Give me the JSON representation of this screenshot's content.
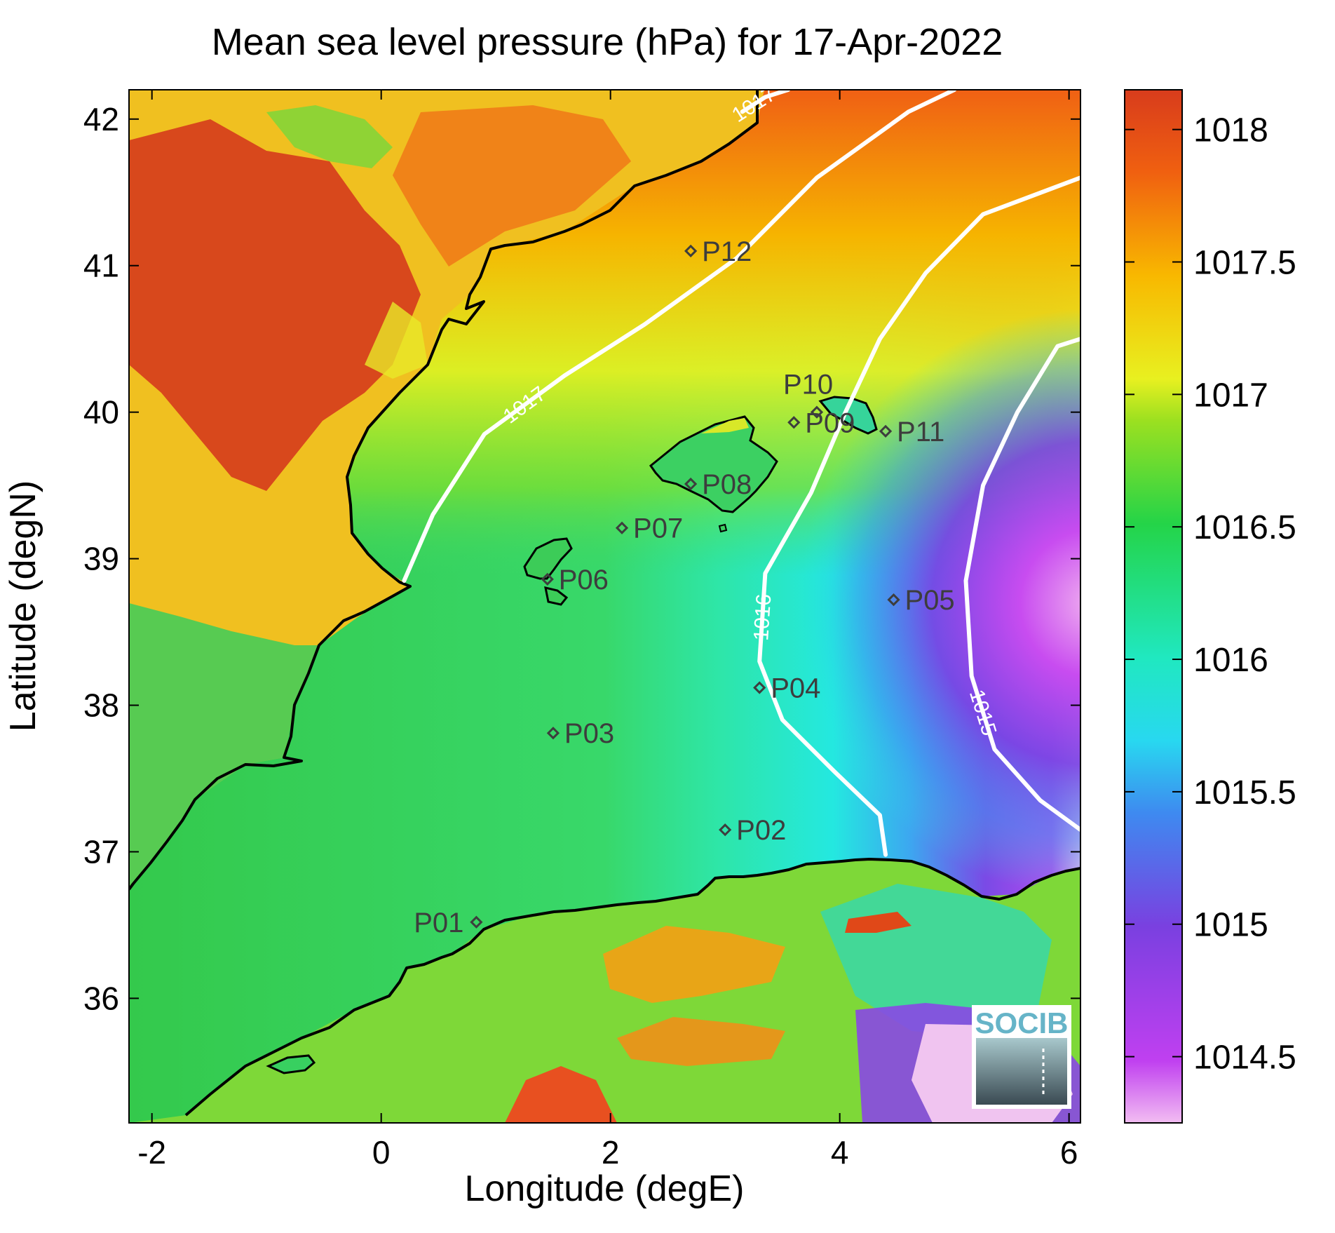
{
  "title": "Mean sea level pressure (hPa) for 17-Apr-2022",
  "chart_data": {
    "type": "heatmap",
    "title": "Mean sea level pressure (hPa) for 17-Apr-2022",
    "xlabel": "Longitude (degE)",
    "ylabel": "Latitude (degN)",
    "xlim": [
      -2.2,
      6.1
    ],
    "ylim": [
      35.15,
      42.2
    ],
    "x_ticks": [
      -2,
      0,
      2,
      4,
      6
    ],
    "y_ticks": [
      36,
      37,
      38,
      39,
      40,
      41,
      42
    ],
    "x_tick_labels": [
      "-2",
      "0",
      "2",
      "4",
      "6"
    ],
    "y_tick_labels": [
      "36",
      "37",
      "38",
      "39",
      "40",
      "41",
      "42"
    ],
    "colorbar": {
      "range": [
        1014.25,
        1018.15
      ],
      "ticks": [
        1014.5,
        1015,
        1015.5,
        1016,
        1016.5,
        1017,
        1017.5,
        1018
      ],
      "tick_labels": [
        "1014.5",
        "1015",
        "1015.5",
        "1016",
        "1016.5",
        "1017",
        "1017.5",
        "1018"
      ],
      "colors": [
        "#f2b8f2",
        "#c040f0",
        "#7a40e0",
        "#3a8cf0",
        "#20e8e0",
        "#20d85a",
        "#c8f020",
        "#f4c000",
        "#f07010",
        "#d83c1c"
      ]
    },
    "contours": [
      {
        "label": "1017",
        "points": [
          [
            0.2,
            38.85
          ],
          [
            0.45,
            39.3
          ],
          [
            0.9,
            39.85
          ],
          [
            1.6,
            40.25
          ],
          [
            2.3,
            40.6
          ],
          [
            3.1,
            41.05
          ],
          [
            3.8,
            41.6
          ],
          [
            4.6,
            42.05
          ],
          [
            5.0,
            42.2
          ]
        ]
      },
      {
        "label": "1017",
        "points": [
          [
            3.15,
            42.05
          ],
          [
            3.35,
            42.15
          ],
          [
            3.55,
            42.2
          ]
        ]
      },
      {
        "label": "1016",
        "points": [
          [
            4.4,
            36.98
          ],
          [
            4.35,
            37.25
          ],
          [
            3.95,
            37.55
          ],
          [
            3.5,
            37.9
          ],
          [
            3.3,
            38.3
          ],
          [
            3.35,
            38.9
          ],
          [
            3.75,
            39.45
          ],
          [
            4.05,
            40.0
          ],
          [
            4.35,
            40.5
          ],
          [
            4.75,
            40.95
          ],
          [
            5.25,
            41.35
          ],
          [
            6.1,
            41.6
          ]
        ]
      },
      {
        "label": "1015",
        "points": [
          [
            6.1,
            37.15
          ],
          [
            5.75,
            37.35
          ],
          [
            5.35,
            37.7
          ],
          [
            5.15,
            38.2
          ],
          [
            5.1,
            38.85
          ],
          [
            5.25,
            39.5
          ],
          [
            5.55,
            40.0
          ],
          [
            5.9,
            40.45
          ],
          [
            6.1,
            40.5
          ]
        ]
      }
    ],
    "stations": [
      {
        "name": "P01",
        "lon": 0.83,
        "lat": 36.52
      },
      {
        "name": "P02",
        "lon": 3.0,
        "lat": 37.15
      },
      {
        "name": "P03",
        "lon": 1.5,
        "lat": 37.81
      },
      {
        "name": "P04",
        "lon": 3.3,
        "lat": 38.12
      },
      {
        "name": "P05",
        "lon": 4.47,
        "lat": 38.72
      },
      {
        "name": "P06",
        "lon": 1.45,
        "lat": 38.86
      },
      {
        "name": "P07",
        "lon": 2.1,
        "lat": 39.21
      },
      {
        "name": "P08",
        "lon": 2.7,
        "lat": 39.51
      },
      {
        "name": "P09",
        "lon": 3.6,
        "lat": 39.93
      },
      {
        "name": "P10",
        "lon": 3.8,
        "lat": 40.0
      },
      {
        "name": "P11",
        "lon": 4.4,
        "lat": 39.87
      },
      {
        "name": "P12",
        "lon": 2.7,
        "lat": 41.1
      }
    ]
  },
  "logo": {
    "text": "SOCIB"
  },
  "colors": {
    "contour": "#ffffff",
    "coastline": "#000000",
    "station_marker": "#3d3d3d",
    "land_high": "#d84c18",
    "sea": "#3cd864"
  }
}
